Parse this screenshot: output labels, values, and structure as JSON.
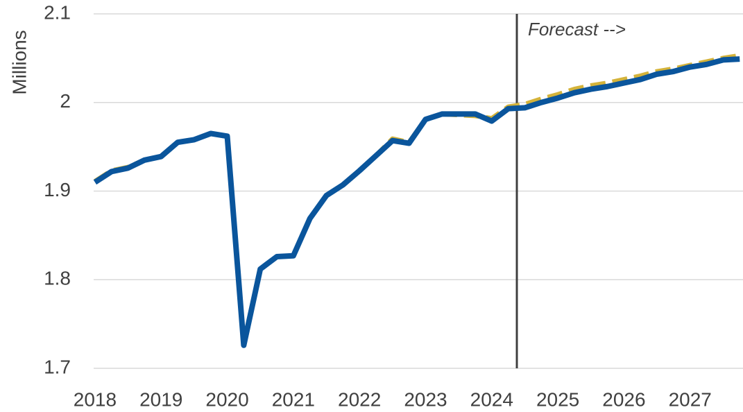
{
  "chart_data": {
    "type": "line",
    "ylabel": "Millions",
    "annotation": "Forecast -->",
    "forecast_x": 2024.38,
    "x": [
      2018,
      2018.25,
      2018.5,
      2018.75,
      2019,
      2019.25,
      2019.5,
      2019.75,
      2020,
      2020.25,
      2020.5,
      2020.75,
      2021,
      2021.25,
      2021.5,
      2021.75,
      2022,
      2022.25,
      2022.5,
      2022.75,
      2023,
      2023.25,
      2023.5,
      2023.75,
      2024,
      2024.25,
      2024.5,
      2024.75,
      2025,
      2025.25,
      2025.5,
      2025.75,
      2026,
      2026.25,
      2026.5,
      2026.75,
      2027,
      2027.25,
      2027.5,
      2027.75
    ],
    "series": [
      {
        "color": "#d4b33a",
        "dashed": true,
        "values": [
          1.911,
          1.923,
          1.927,
          1.935,
          1.939,
          1.955,
          1.958,
          1.965,
          1.962,
          1.726,
          1.812,
          1.826,
          1.827,
          1.869,
          1.895,
          1.907,
          1.923,
          1.94,
          1.959,
          1.955,
          1.981,
          1.987,
          1.986,
          1.985,
          1.982,
          1.995,
          1.998,
          2.004,
          2.009,
          2.015,
          2.019,
          2.022,
          2.026,
          2.03,
          2.035,
          2.038,
          2.042,
          2.046,
          2.05,
          2.053
        ]
      },
      {
        "color": "#0a559c",
        "dashed": false,
        "values": [
          1.91,
          1.922,
          1.926,
          1.935,
          1.939,
          1.955,
          1.958,
          1.965,
          1.962,
          1.726,
          1.812,
          1.826,
          1.827,
          1.869,
          1.895,
          1.907,
          1.923,
          1.94,
          1.957,
          1.954,
          1.981,
          1.987,
          1.987,
          1.987,
          1.979,
          1.993,
          1.994,
          2.0,
          2.005,
          2.011,
          2.015,
          2.018,
          2.022,
          2.026,
          2.032,
          2.035,
          2.04,
          2.043,
          2.048,
          2.049
        ]
      }
    ],
    "xlim": [
      2017.98,
      2027.8
    ],
    "xticks": [
      2018,
      2019,
      2020,
      2021,
      2022,
      2023,
      2024,
      2025,
      2026,
      2027
    ],
    "ylim": [
      1.7,
      2.1
    ],
    "yticks": [
      1.7,
      1.8,
      1.9,
      2.0,
      2.1
    ],
    "grid": true
  }
}
